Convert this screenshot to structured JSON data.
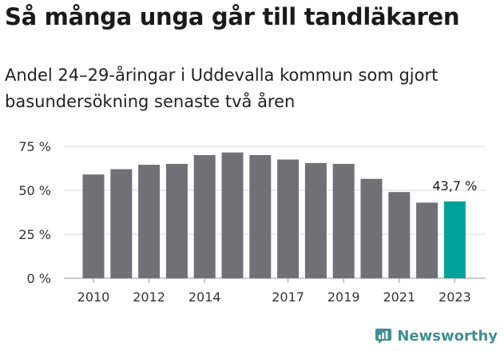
{
  "title": "Så många unga går till tandläkaren",
  "subtitle": "Andel 24–29-åringar i Uddevalla kommun som gjort basundersökning senaste två åren",
  "brand": {
    "name": "Newsworthy",
    "icon": "newsworthy-logo-icon",
    "color": "#3f8f92"
  },
  "chart_data": {
    "type": "bar",
    "categories": [
      "2010",
      "2011",
      "2012",
      "2013",
      "2014",
      "2015",
      "2016",
      "2017",
      "2018",
      "2019",
      "2020",
      "2021",
      "2022",
      "2023"
    ],
    "values": [
      59,
      62,
      64.5,
      65,
      70,
      71.5,
      70,
      67.5,
      65.5,
      65,
      56.5,
      49,
      43,
      43.7
    ],
    "x_tick_labels": [
      "2010",
      "2012",
      "2014",
      "2017",
      "2019",
      "2021",
      "2023"
    ],
    "y_ticks": [
      0,
      25,
      50,
      75
    ],
    "y_tick_labels": [
      "0 %",
      "25 %",
      "50 %",
      "75 %"
    ],
    "ylim": [
      0,
      75
    ],
    "grid": true,
    "colors": {
      "bar": "#717074",
      "highlight": "#00a39a"
    },
    "highlight_category": "2023",
    "annotation": {
      "category": "2023",
      "text": "43,7 %"
    }
  }
}
